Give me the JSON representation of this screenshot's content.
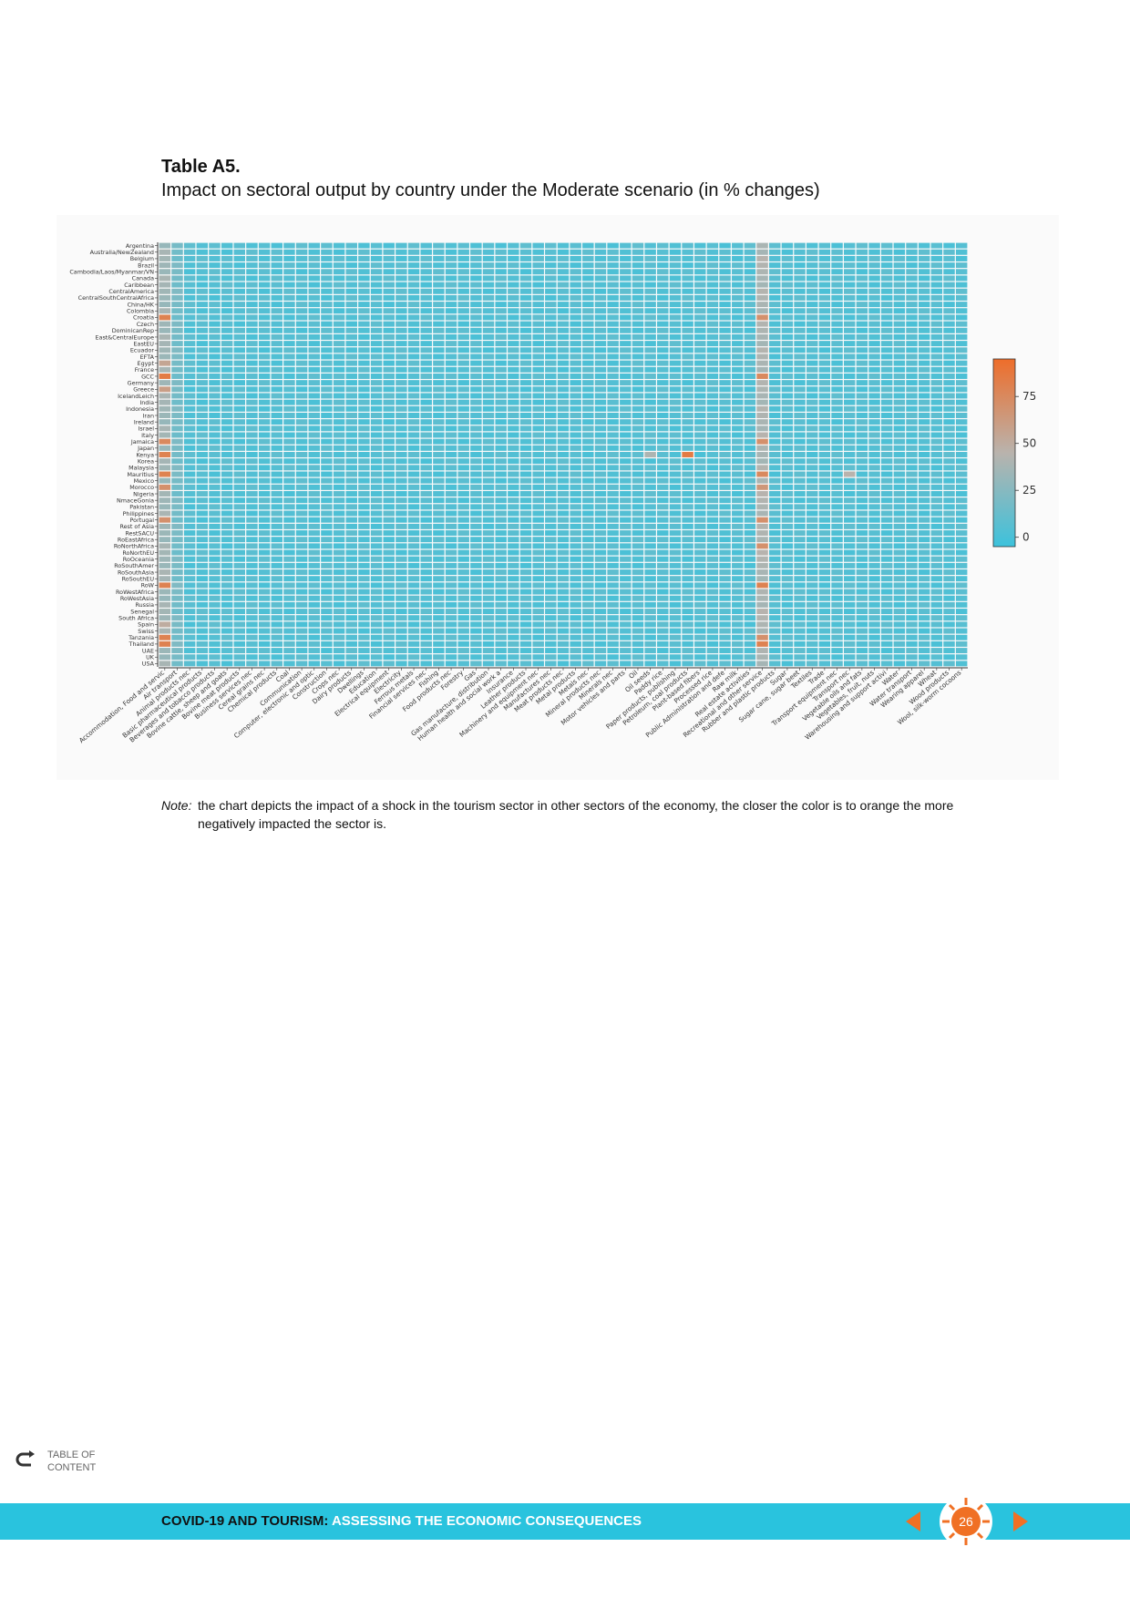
{
  "title": "Table A5.",
  "subtitle": "Impact on sectoral output by country under the Moderate scenario (in % changes)",
  "note_label": "Note:",
  "note_text": "the chart depicts the impact of a shock in the tourism sector in other sectors of the economy, the closer the color is to orange the more negatively impacted the sector is.",
  "toc_label_1": "TABLE OF",
  "toc_label_2": "CONTENT",
  "footer_title_bold": "COVID-19 AND TOURISM:",
  "footer_title_rest": " ASSESSING THE ECONOMIC CONSEQUENCES",
  "page_number": "26",
  "colors": {
    "footer": "#29c3de",
    "accent": "#f07024",
    "low": "#3cc2dc",
    "mid": "#b9b3ad",
    "high": "#ee6d2a"
  },
  "chart_data": {
    "type": "heatmap",
    "title": "",
    "value_range": [
      -5,
      95
    ],
    "colorbar_ticks": [
      0,
      25,
      50,
      75
    ],
    "rows": [
      "Argentina",
      "Australia/NewZealand",
      "Belgium",
      "Brazil",
      "Cambodia/Laos/Myanmar/VN",
      "Canada",
      "Caribbean",
      "CentralAmerica",
      "CentralSouthCentralAfrica",
      "China/HK",
      "Colombia",
      "Croatia",
      "Czech",
      "DominicanRep",
      "East&CentralEurope",
      "EastEU",
      "Ecuador",
      "EFTA",
      "Egypt",
      "France",
      "GCC",
      "Germany",
      "Greece",
      "IcelandLeich",
      "India",
      "Indonesia",
      "Iran",
      "Ireland",
      "Israel",
      "Italy",
      "Jamaica",
      "Japan",
      "Kenya",
      "Korea",
      "Malaysia",
      "Mauritius",
      "Mexico",
      "Morocco",
      "Nigeria",
      "NmaceGonia",
      "Pakistan",
      "Philippines",
      "Portugal",
      "Rest of Asia",
      "RestSACU",
      "RoEastAfrica",
      "RoNorthAfrica",
      "RoNorthEU",
      "RoOceania",
      "RoSouthAmer",
      "RoSouthAsia",
      "RoSouthEU",
      "RoW",
      "RoWestAfrica",
      "RoWestAsia",
      "Russia",
      "Senegal",
      "South Africa",
      "Spain",
      "Swiss",
      "Tanzania",
      "Thailand",
      "UAE",
      "UK",
      "USA"
    ],
    "columns": [
      "Accommodation, Food and servic",
      "Air transport",
      "Animal products nec",
      "Basic pharmaceutical products",
      "Beverages and tobacco products",
      "Bovine cattle, sheep and goats",
      "Bovine meat products",
      "Business services nec",
      "Cereal grains nec",
      "Chemical products",
      "Coal",
      "Communication",
      "Computer, electronic and optic",
      "Construction",
      "Crops nec",
      "Dairy products",
      "Dwellings",
      "Education",
      "Electrical equipment",
      "Electricity",
      "Ferrous metals",
      "Financial services nec",
      "Fishing",
      "Food products nec",
      "Forestry",
      "Gas",
      "Gas manufacture, distribution",
      "Human health and social work a",
      "Insurance",
      "Leather products",
      "Machinery and equipment nec",
      "Manufactures nec",
      "Meat products nec",
      "Metal products",
      "Metals nec",
      "Mineral products nec",
      "Minerals nec",
      "Motor vehicles and parts",
      "Oil",
      "Oil seeds",
      "Paddy rice",
      "Paper products, publishing",
      "Petroleum, coal products",
      "Plant-based fibers",
      "Processed rice",
      "Public Administration and defe",
      "Raw milk",
      "Real estate activities",
      "Recreational and other service",
      "Rubber and plastic products",
      "Sugar",
      "Sugar cane, sugar beet",
      "Textiles",
      "Trade",
      "Transport equipment nec",
      "Transport nec",
      "Vegetable oils and fats",
      "Vegetables, fruit, nuts",
      "Warehousing and support activi",
      "Water",
      "Water transport",
      "Wearing apparel",
      "Wheat",
      "Wood products",
      "Wool, silk-worm cocoons"
    ],
    "base_value": 5,
    "column_baselines": {
      "0": 35,
      "1": 18,
      "48": 40
    },
    "highlights": [
      {
        "row": "Croatia",
        "column": "Accommodation, Food and servic",
        "value": 80
      },
      {
        "row": "Croatia",
        "column": "Recreational and other service",
        "value": 70
      },
      {
        "row": "GCC",
        "column": "Accommodation, Food and servic",
        "value": 85
      },
      {
        "row": "GCC",
        "column": "Recreational and other service",
        "value": 75
      },
      {
        "row": "Jamaica",
        "column": "Accommodation, Food and servic",
        "value": 75
      },
      {
        "row": "Jamaica",
        "column": "Recreational and other service",
        "value": 70
      },
      {
        "row": "Kenya",
        "column": "Accommodation, Food and servic",
        "value": 80
      },
      {
        "row": "Kenya",
        "column": "Petroleum, coal products",
        "value": 85
      },
      {
        "row": "Kenya",
        "column": "Oil seeds",
        "value": 40
      },
      {
        "row": "Mauritius",
        "column": "Accommodation, Food and servic",
        "value": 80
      },
      {
        "row": "Mauritius",
        "column": "Recreational and other service",
        "value": 75
      },
      {
        "row": "Mauritius",
        "column": "Transport nec",
        "value": 45
      },
      {
        "row": "Morocco",
        "column": "Accommodation, Food and servic",
        "value": 70
      },
      {
        "row": "Morocco",
        "column": "Recreational and other service",
        "value": 65
      },
      {
        "row": "Portugal",
        "column": "Accommodation, Food and servic",
        "value": 70
      },
      {
        "row": "Portugal",
        "column": "Recreational and other service",
        "value": 70
      },
      {
        "row": "RoNorthAfrica",
        "column": "Recreational and other service",
        "value": 70
      },
      {
        "row": "RoW",
        "column": "Accommodation, Food and servic",
        "value": 80
      },
      {
        "row": "RoW",
        "column": "Recreational and other service",
        "value": 80
      },
      {
        "row": "Tanzania",
        "column": "Accommodation, Food and servic",
        "value": 80
      },
      {
        "row": "Tanzania",
        "column": "Recreational and other service",
        "value": 70
      },
      {
        "row": "Thailand",
        "column": "Accommodation, Food and servic",
        "value": 80
      },
      {
        "row": "Thailand",
        "column": "Recreational and other service",
        "value": 80
      },
      {
        "row": "Greece",
        "column": "Accommodation, Food and servic",
        "value": 60
      },
      {
        "row": "Egypt",
        "column": "Accommodation, Food and servic",
        "value": 55
      },
      {
        "row": "Spain",
        "column": "Accommodation, Food and servic",
        "value": 50
      }
    ]
  }
}
